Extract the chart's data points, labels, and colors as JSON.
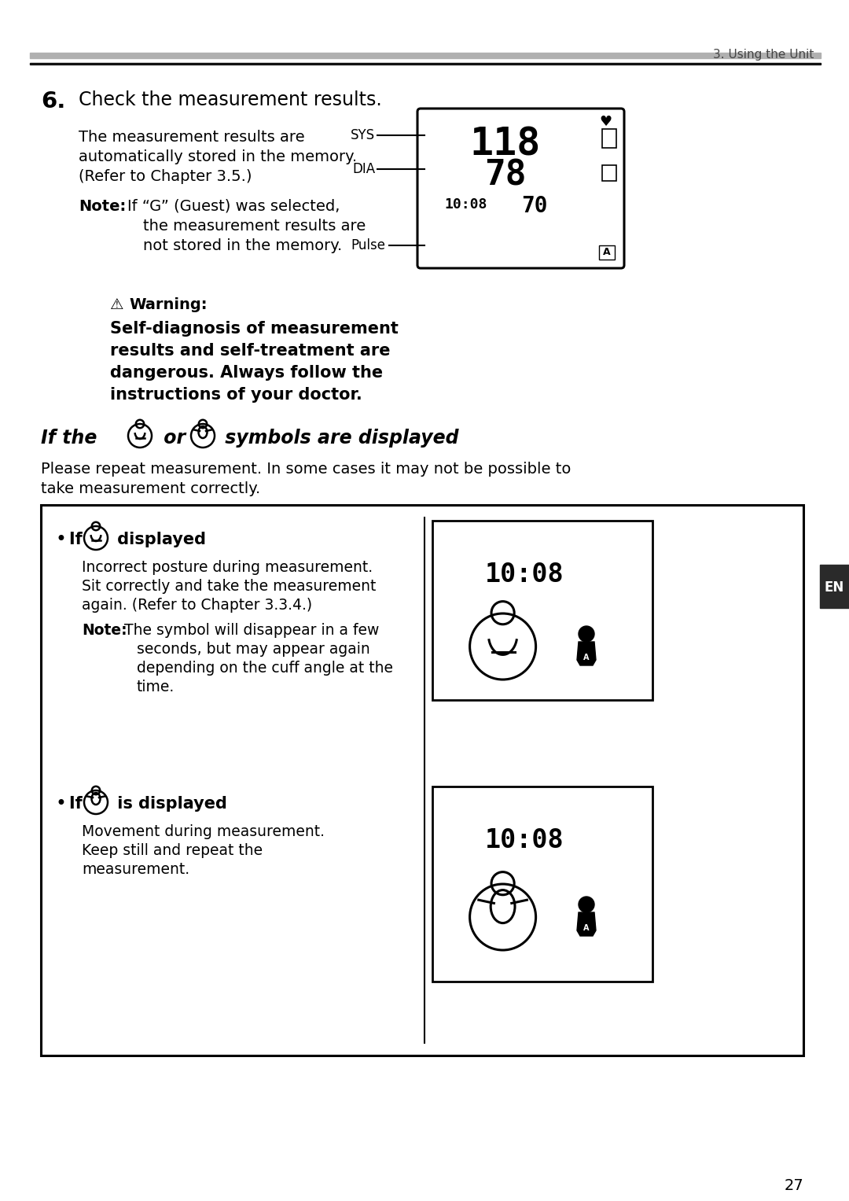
{
  "page_number": "27",
  "header_text": "3. Using the Unit",
  "background_color": "#ffffff",
  "section_number": "6.",
  "section_title": "Check the measurement results.",
  "en_label": "EN"
}
